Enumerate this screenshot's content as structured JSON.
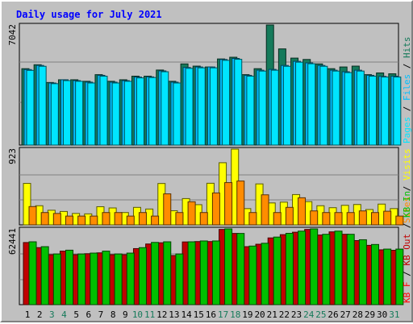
{
  "title": "Daily usage for July 2021",
  "colors": {
    "background": "#c0c0c0",
    "title": "#0000ff",
    "hits": "#157a5a",
    "files": "#00bfff",
    "pages": "#00e5ff",
    "visits": "#ffff00",
    "sites": "#ff8c00",
    "kb_in": "#00c000",
    "kb_out": "#c00000",
    "kb_f": "#ff0000",
    "weekend_day": "#157a5a",
    "weekday_day": "#000000"
  },
  "chart_data": [
    {
      "type": "bar",
      "name": "top-panel",
      "ymax_label": "7042",
      "ylim": [
        0,
        7042
      ],
      "categories": [
        "1",
        "2",
        "3",
        "4",
        "5",
        "6",
        "7",
        "8",
        "9",
        "10",
        "11",
        "12",
        "13",
        "14",
        "15",
        "16",
        "17",
        "18",
        "19",
        "20",
        "21",
        "22",
        "23",
        "24",
        "25",
        "26",
        "27",
        "28",
        "29",
        "30",
        "31"
      ],
      "series": [
        {
          "name": "Hits",
          "values": [
            4480,
            4710,
            3670,
            3830,
            3830,
            3740,
            4130,
            3740,
            3830,
            4040,
            4040,
            4400,
            3740,
            4760,
            4630,
            4580,
            5050,
            5150,
            4130,
            4480,
            7042,
            5640,
            5100,
            5020,
            4760,
            4480,
            4580,
            4630,
            4130,
            4230,
            4180
          ]
        },
        {
          "name": "Files",
          "values": [
            4430,
            4670,
            3640,
            3830,
            3780,
            3690,
            4090,
            3690,
            3780,
            3990,
            4000,
            4350,
            3690,
            4550,
            4580,
            4580,
            5020,
            5080,
            4090,
            4390,
            4440,
            4670,
            4910,
            4820,
            4670,
            4390,
            4300,
            4390,
            4090,
            4030,
            4040
          ]
        },
        {
          "name": "Pages",
          "values": [
            4380,
            4620,
            3600,
            3780,
            3740,
            3640,
            4040,
            3640,
            3740,
            3940,
            3960,
            4300,
            3640,
            4500,
            4530,
            4530,
            4970,
            5030,
            4040,
            4340,
            4390,
            4620,
            4860,
            4770,
            4620,
            4340,
            4250,
            4340,
            4040,
            3990,
            3990
          ]
        }
      ],
      "legend": [
        "Pages",
        "Files",
        "Hits"
      ]
    },
    {
      "type": "bar",
      "name": "middle-panel",
      "ymax_label": "923",
      "ylim": [
        0,
        923
      ],
      "categories": [
        "1",
        "2",
        "3",
        "4",
        "5",
        "6",
        "7",
        "8",
        "9",
        "10",
        "11",
        "12",
        "13",
        "14",
        "15",
        "16",
        "17",
        "18",
        "19",
        "20",
        "21",
        "22",
        "23",
        "24",
        "25",
        "26",
        "27",
        "28",
        "29",
        "30",
        "31"
      ],
      "series": [
        {
          "name": "Visits",
          "values": [
            505,
            233,
            178,
            163,
            139,
            134,
            221,
            206,
            150,
            213,
            193,
            504,
            172,
            320,
            246,
            507,
            757,
            923,
            198,
            499,
            267,
            277,
            369,
            283,
            233,
            209,
            238,
            248,
            187,
            253,
            198
          ]
        },
        {
          "name": "Sites",
          "values": [
            223,
            150,
            139,
            107,
            107,
            107,
            150,
            150,
            107,
            150,
            107,
            378,
            150,
            281,
            150,
            389,
            515,
            534,
            150,
            366,
            150,
            213,
            330,
            170,
            150,
            150,
            150,
            170,
            150,
            166,
            107
          ]
        }
      ],
      "legend": [
        "Sites",
        "Visits"
      ]
    },
    {
      "type": "bar",
      "name": "bottom-panel",
      "ymax_label": "62441",
      "ylim": [
        0,
        62441
      ],
      "categories": [
        "1",
        "2",
        "3",
        "4",
        "5",
        "6",
        "7",
        "8",
        "9",
        "10",
        "11",
        "12",
        "13",
        "14",
        "15",
        "16",
        "17",
        "18",
        "19",
        "20",
        "21",
        "22",
        "23",
        "24",
        "25",
        "26",
        "27",
        "28",
        "29",
        "30",
        "31"
      ],
      "series": [
        {
          "name": "KB Out",
          "values": [
            51200,
            47000,
            41200,
            44100,
            41200,
            42000,
            42700,
            41200,
            41200,
            46200,
            50000,
            51000,
            40500,
            51700,
            52000,
            52000,
            62000,
            58700,
            47800,
            49800,
            55000,
            57700,
            59700,
            62000,
            57400,
            60000,
            58000,
            52800,
            48900,
            45200,
            44800
          ]
        },
        {
          "name": "KB In",
          "values": [
            51800,
            47800,
            41800,
            44900,
            41800,
            42500,
            44100,
            41800,
            42500,
            47000,
            51300,
            51800,
            41800,
            51800,
            52500,
            52500,
            62441,
            58700,
            48300,
            50600,
            55700,
            58800,
            60600,
            62441,
            58000,
            60600,
            58000,
            53500,
            49600,
            45800,
            45800
          ]
        }
      ],
      "legend": [
        "KB F",
        "KB Out",
        "KB In"
      ]
    }
  ],
  "x_axis": {
    "labels": [
      "1",
      "2",
      "3",
      "4",
      "5",
      "6",
      "7",
      "8",
      "9",
      "10",
      "11",
      "12",
      "13",
      "14",
      "15",
      "16",
      "17",
      "18",
      "19",
      "20",
      "21",
      "22",
      "23",
      "24",
      "25",
      "26",
      "27",
      "28",
      "29",
      "30",
      "31"
    ],
    "weekend_days": [
      "3",
      "4",
      "10",
      "11",
      "17",
      "18",
      "24",
      "25",
      "31"
    ]
  },
  "legend_text": {
    "top": [
      {
        "text": "Pages",
        "color": "#00e5ff"
      },
      {
        "text": " / ",
        "color": "#000000"
      },
      {
        "text": "Files",
        "color": "#00bfff"
      },
      {
        "text": " / ",
        "color": "#000000"
      },
      {
        "text": "Hits",
        "color": "#157a5a"
      }
    ],
    "middle": [
      {
        "text": "Sites",
        "color": "#ff8c00"
      },
      {
        "text": " / ",
        "color": "#000000"
      },
      {
        "text": "Visits",
        "color": "#ffff00"
      }
    ],
    "bottom": [
      {
        "text": "KB F",
        "color": "#ff0000"
      },
      {
        "text": " / ",
        "color": "#000000"
      },
      {
        "text": "KB Out",
        "color": "#c00000"
      },
      {
        "text": " / ",
        "color": "#000000"
      },
      {
        "text": "KB In",
        "color": "#00c000"
      }
    ]
  }
}
